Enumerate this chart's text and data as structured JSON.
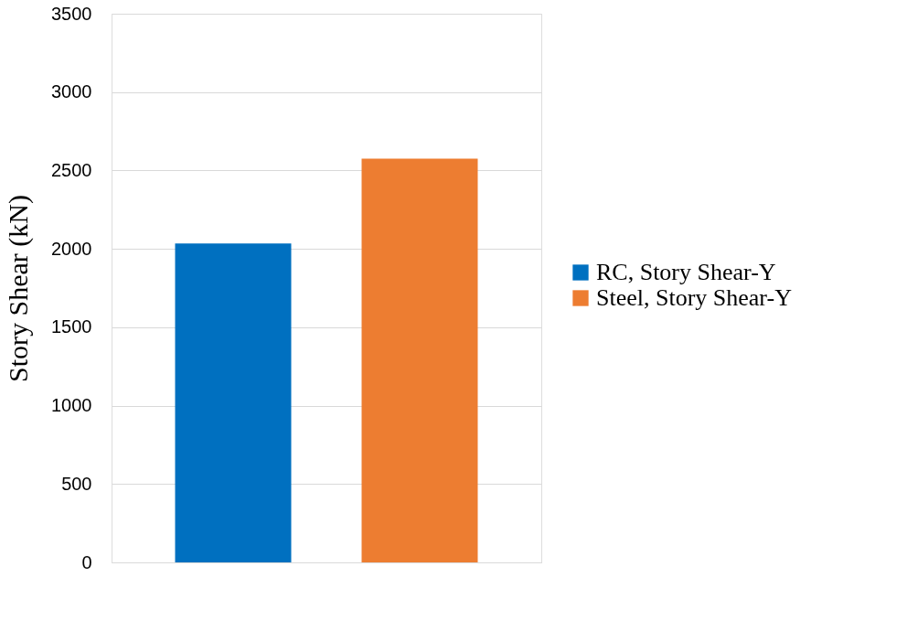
{
  "chart_data": {
    "type": "bar",
    "ylabel": "Story Shear (kN)",
    "categories": [
      null
    ],
    "series": [
      {
        "name": "RC, Story Shear-Y",
        "color": "#0070c0",
        "values": [
          2035
        ]
      },
      {
        "name": "Steel, Story Shear-Y",
        "color": "#ed7d31",
        "values": [
          2575
        ]
      }
    ],
    "ylim": [
      0,
      3500
    ],
    "yticks": [
      0,
      500,
      1000,
      1500,
      2000,
      2500,
      3000,
      3500
    ],
    "grid": "y",
    "legend": "right",
    "tick_labels": "y"
  }
}
